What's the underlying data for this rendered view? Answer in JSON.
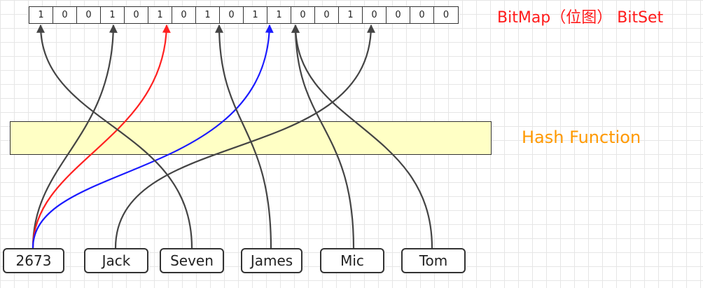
{
  "bitmap": {
    "bits": [
      "1",
      "0",
      "0",
      "1",
      "0",
      "1",
      "0",
      "1",
      "0",
      "1",
      "1",
      "0",
      "0",
      "1",
      "0",
      "0",
      "0",
      "0"
    ],
    "title": "BitMap（位图） BitSet"
  },
  "hash_function": {
    "label": "Hash Function"
  },
  "names": [
    "2673",
    "Jack",
    "Seven",
    "James",
    "Mic",
    "Tom"
  ],
  "colors": {
    "arrow_default": "#444444",
    "arrow_red": "#ff2020",
    "arrow_blue": "#1a1aff",
    "title": "#ff1a1a",
    "hash_label": "#ff9900",
    "hash_fill": "#ffffc5"
  }
}
